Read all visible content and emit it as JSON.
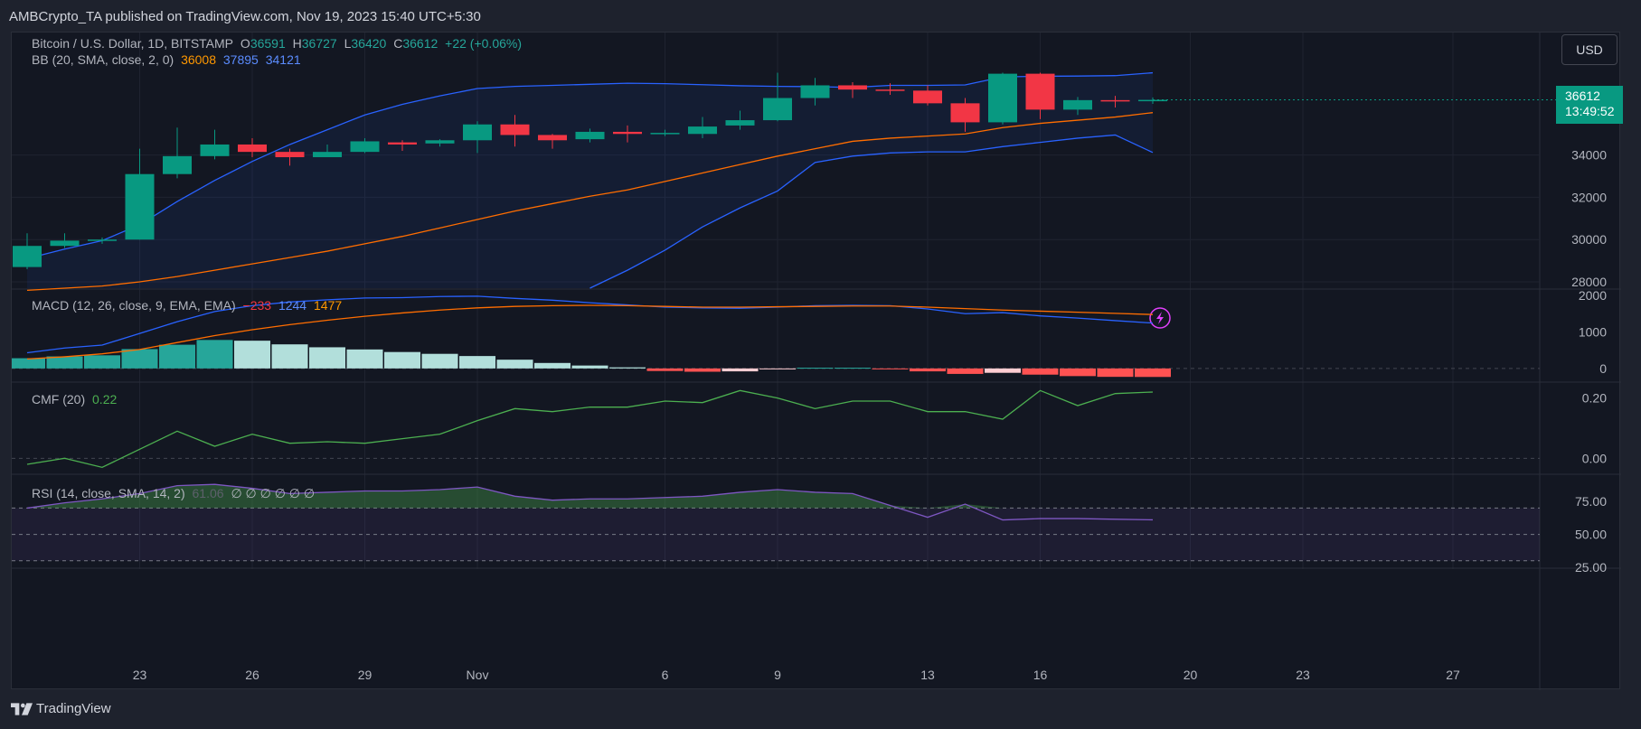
{
  "header": "AMBCrypto_TA published on TradingView.com, Nov 19, 2023 15:40 UTC+5:30",
  "footer": {
    "brand": "TradingView",
    "icon": "tradingview-logo-icon"
  },
  "currency_button": "USD",
  "price_tag": {
    "price": "36612",
    "countdown": "13:49:52"
  },
  "colors": {
    "up": "#089981",
    "down": "#f23645",
    "bb_basis": "#ff6d00",
    "bb_band": "#2962ff",
    "macd_line": "#2962ff",
    "signal_line": "#ff6d00",
    "cmf": "#4caf50",
    "rsi": "#7e57c2",
    "hist_strong_up": "#26a69a",
    "hist_weak_up": "#b2dfdb",
    "hist_strong_down": "#ff5252",
    "hist_weak_down": "#ffcdd2"
  },
  "legend": {
    "main": {
      "symbol": "Bitcoin / U.S. Dollar, 1D, BITSTAMP",
      "o_label": "O",
      "o": "36591",
      "h_label": "H",
      "h": "36727",
      "l_label": "L",
      "l": "36420",
      "c_label": "C",
      "c": "36612",
      "change": "+22 (+0.06%)"
    },
    "bb": {
      "name": "BB (20, SMA, close, 2, 0)",
      "basis": "36008",
      "upper": "37895",
      "lower": "34121"
    },
    "macd": {
      "name": "MACD (12, 26, close, 9, EMA, EMA)",
      "hist": "−233",
      "macd": "1244",
      "signal": "1477"
    },
    "cmf": {
      "name": "CMF (20)",
      "value": "0.22"
    },
    "rsi": {
      "name": "RSI (14, close, SMA, 14, 2)",
      "value": "61.06",
      "extras": "∅ ∅ ∅ ∅ ∅ ∅"
    }
  },
  "chart_data": {
    "type": "candlestick",
    "title": "Bitcoin / U.S. Dollar, 1D, BITSTAMP",
    "x_tick_labels": [
      {
        "label": "23",
        "day": 3
      },
      {
        "label": "26",
        "day": 6
      },
      {
        "label": "29",
        "day": 9
      },
      {
        "label": "Nov",
        "day": 12
      },
      {
        "label": "6",
        "day": 17
      },
      {
        "label": "9",
        "day": 20
      },
      {
        "label": "13",
        "day": 24
      },
      {
        "label": "16",
        "day": 27
      },
      {
        "label": "20",
        "day": 31
      },
      {
        "label": "23",
        "day": 34
      },
      {
        "label": "27",
        "day": 38
      }
    ],
    "price_axis": {
      "ticks": [
        "28000",
        "30000",
        "32000",
        "34000"
      ],
      "range": [
        27700,
        39800
      ]
    },
    "candles": [
      {
        "day": 0,
        "o": 28700,
        "h": 30300,
        "l": 28600,
        "c": 29700
      },
      {
        "day": 1,
        "o": 29700,
        "h": 30300,
        "l": 29600,
        "c": 29950
      },
      {
        "day": 2,
        "o": 29950,
        "h": 30100,
        "l": 29800,
        "c": 30000
      },
      {
        "day": 3,
        "o": 30000,
        "h": 34300,
        "l": 30000,
        "c": 33100
      },
      {
        "day": 4,
        "o": 33100,
        "h": 35300,
        "l": 32900,
        "c": 33950
      },
      {
        "day": 5,
        "o": 33950,
        "h": 35200,
        "l": 33800,
        "c": 34500
      },
      {
        "day": 6,
        "o": 34500,
        "h": 34800,
        "l": 33900,
        "c": 34150
      },
      {
        "day": 7,
        "o": 34150,
        "h": 34300,
        "l": 33500,
        "c": 33900
      },
      {
        "day": 8,
        "o": 33900,
        "h": 34500,
        "l": 33900,
        "c": 34150
      },
      {
        "day": 9,
        "o": 34150,
        "h": 34800,
        "l": 34100,
        "c": 34650
      },
      {
        "day": 10,
        "o": 34600,
        "h": 34700,
        "l": 34200,
        "c": 34500
      },
      {
        "day": 11,
        "o": 34550,
        "h": 34750,
        "l": 34400,
        "c": 34700
      },
      {
        "day": 12,
        "o": 34700,
        "h": 35600,
        "l": 34100,
        "c": 35450
      },
      {
        "day": 13,
        "o": 35450,
        "h": 35900,
        "l": 34400,
        "c": 34950
      },
      {
        "day": 14,
        "o": 34950,
        "h": 35000,
        "l": 34300,
        "c": 34700
      },
      {
        "day": 15,
        "o": 34750,
        "h": 35250,
        "l": 34600,
        "c": 35100
      },
      {
        "day": 16,
        "o": 35100,
        "h": 35400,
        "l": 34600,
        "c": 35000
      },
      {
        "day": 17,
        "o": 35000,
        "h": 35200,
        "l": 34900,
        "c": 35050
      },
      {
        "day": 18,
        "o": 35000,
        "h": 35800,
        "l": 34800,
        "c": 35350
      },
      {
        "day": 19,
        "o": 35400,
        "h": 36100,
        "l": 35200,
        "c": 35650
      },
      {
        "day": 20,
        "o": 35650,
        "h": 37900,
        "l": 35600,
        "c": 36700
      },
      {
        "day": 21,
        "o": 36700,
        "h": 37650,
        "l": 36350,
        "c": 37300
      },
      {
        "day": 22,
        "o": 37300,
        "h": 37450,
        "l": 36700,
        "c": 37100
      },
      {
        "day": 23,
        "o": 37100,
        "h": 37400,
        "l": 36850,
        "c": 37050
      },
      {
        "day": 24,
        "o": 37050,
        "h": 37300,
        "l": 36350,
        "c": 36450
      },
      {
        "day": 25,
        "o": 36450,
        "h": 36700,
        "l": 35100,
        "c": 35550
      },
      {
        "day": 26,
        "o": 35550,
        "h": 37900,
        "l": 35450,
        "c": 37850
      },
      {
        "day": 27,
        "o": 37850,
        "h": 37900,
        "l": 35700,
        "c": 36150
      },
      {
        "day": 28,
        "o": 36150,
        "h": 36750,
        "l": 35900,
        "c": 36600
      },
      {
        "day": 29,
        "o": 36600,
        "h": 36800,
        "l": 36250,
        "c": 36550
      },
      {
        "day": 30,
        "o": 36591,
        "h": 36727,
        "l": 36420,
        "c": 36612
      }
    ],
    "bb_upper": [
      29100,
      29550,
      29950,
      30700,
      31800,
      32800,
      33700,
      34500,
      35200,
      35900,
      36400,
      36800,
      37150,
      37250,
      37300,
      37350,
      37400,
      37380,
      37330,
      37280,
      37250,
      37240,
      37200,
      37300,
      37300,
      37320,
      37700,
      37730,
      37740,
      37760,
      37895
    ],
    "bb_basis": [
      27600,
      27700,
      27800,
      28000,
      28250,
      28550,
      28850,
      29150,
      29450,
      29800,
      30150,
      30550,
      30950,
      31350,
      31700,
      32050,
      32350,
      32750,
      33150,
      33550,
      33950,
      34300,
      34650,
      34800,
      34900,
      35000,
      35300,
      35500,
      35650,
      35800,
      36008
    ],
    "bb_lower": [
      null,
      null,
      null,
      null,
      null,
      null,
      null,
      null,
      null,
      null,
      null,
      null,
      null,
      null,
      null,
      27700,
      28550,
      29500,
      30600,
      31500,
      32300,
      33650,
      33950,
      34100,
      34150,
      34150,
      34400,
      34600,
      34800,
      34950,
      34121
    ],
    "macd": {
      "axis_ticks": [
        "2000",
        "1000",
        "0"
      ],
      "range": [
        -350,
        2150
      ],
      "histogram": [
        280,
        330,
        360,
        530,
        650,
        780,
        760,
        660,
        580,
        520,
        450,
        400,
        340,
        240,
        150,
        80,
        30,
        -70,
        -90,
        -80,
        -20,
        20,
        20,
        -20,
        -80,
        -150,
        -120,
        -170,
        -210,
        -230,
        -233
      ],
      "macd_line": [
        430,
        560,
        640,
        960,
        1280,
        1560,
        1720,
        1820,
        1880,
        1930,
        1940,
        1970,
        1980,
        1920,
        1870,
        1800,
        1740,
        1680,
        1660,
        1650,
        1680,
        1720,
        1730,
        1720,
        1630,
        1500,
        1530,
        1440,
        1380,
        1310,
        1244
      ],
      "signal_line": [
        260,
        320,
        400,
        520,
        710,
        900,
        1060,
        1200,
        1320,
        1430,
        1520,
        1600,
        1660,
        1700,
        1720,
        1730,
        1720,
        1700,
        1680,
        1680,
        1690,
        1700,
        1710,
        1710,
        1680,
        1640,
        1600,
        1570,
        1540,
        1510,
        1477
      ]
    },
    "cmf": {
      "axis_ticks": [
        "0.20",
        "0.00"
      ],
      "range": [
        -0.05,
        0.25
      ],
      "values": [
        -0.02,
        0.0,
        -0.03,
        0.03,
        0.09,
        0.04,
        0.08,
        0.05,
        0.055,
        0.05,
        0.065,
        0.08,
        0.125,
        0.165,
        0.155,
        0.17,
        0.17,
        0.19,
        0.185,
        0.225,
        0.2,
        0.165,
        0.19,
        0.19,
        0.155,
        0.155,
        0.13,
        0.225,
        0.175,
        0.215,
        0.22
      ]
    },
    "rsi": {
      "axis_ticks": [
        "75.00",
        "50.00",
        "25.00"
      ],
      "range": [
        25,
        95
      ],
      "overbought": 70,
      "middle": 50,
      "oversold": 30,
      "values": [
        70,
        74,
        77,
        81,
        87,
        88,
        85,
        81,
        82,
        83,
        83,
        84,
        86,
        79,
        76,
        77,
        77,
        78,
        79,
        82,
        84,
        82,
        81,
        72,
        63,
        73,
        61,
        62,
        62,
        61.5,
        61.06
      ]
    }
  }
}
